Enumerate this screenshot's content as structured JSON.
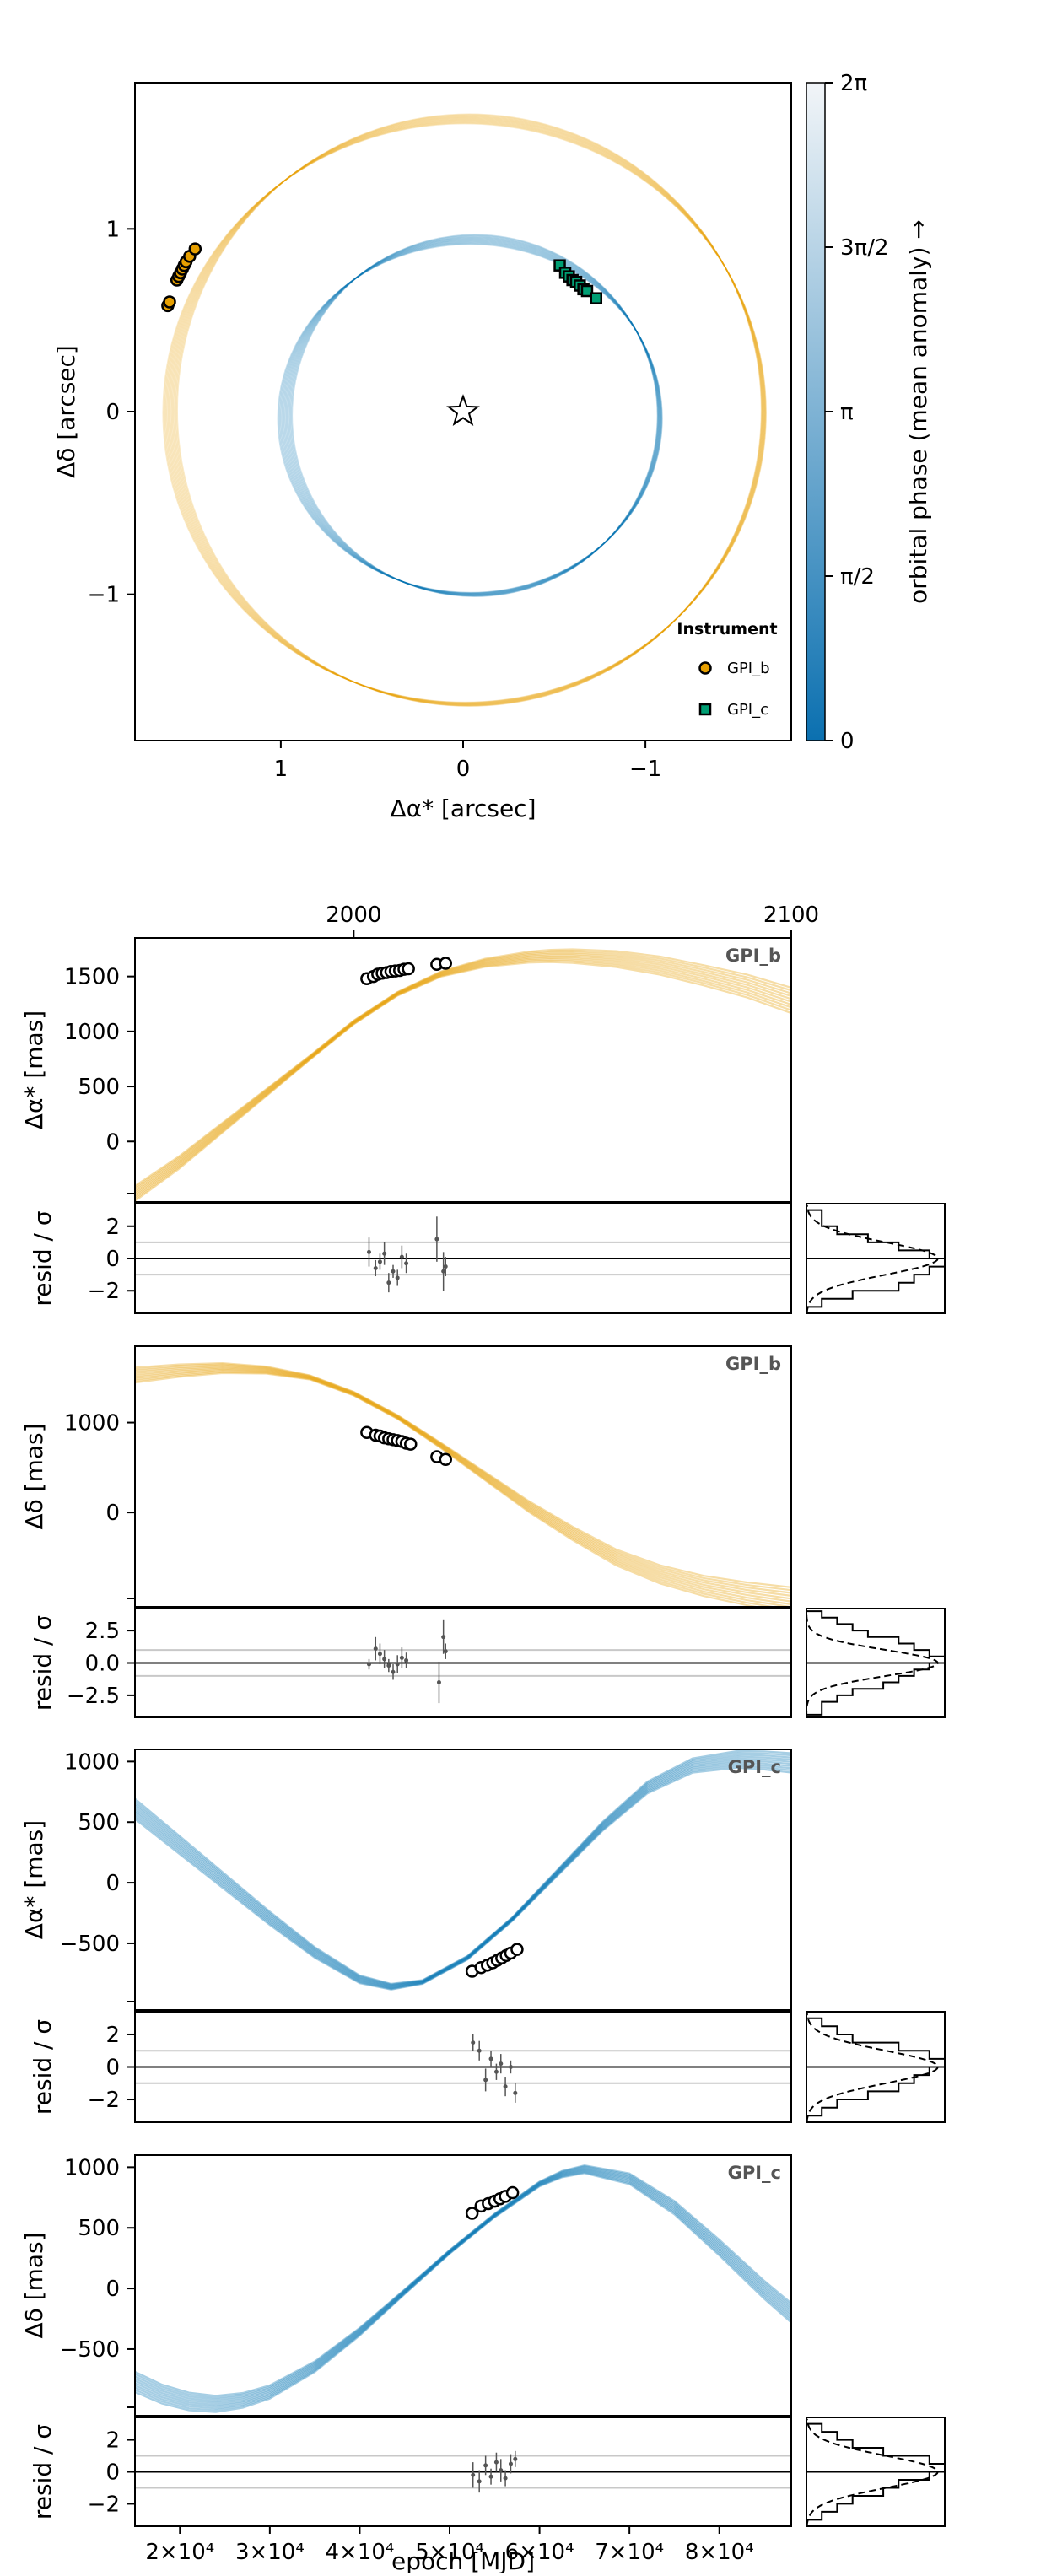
{
  "colors": {
    "planet_b": "#e69f00",
    "planet_c": "#0072b2",
    "marker_c": "#009e73",
    "colormap": [
      "#0b70b0",
      "#f2f5f8"
    ]
  },
  "chart_data": [
    {
      "id": "astrometry",
      "type": "line",
      "xlabel": "Δα* [arcsec]",
      "ylabel": "Δδ [arcsec]",
      "xlim": [
        1.8,
        -1.8
      ],
      "ylim": [
        -1.8,
        1.8
      ],
      "x_reversed": true,
      "xticks": [
        1,
        0,
        -1
      ],
      "xtick_labels": [
        "1",
        "0",
        "−1"
      ],
      "yticks": [
        1,
        0,
        -1
      ],
      "ytick_labels": [
        "1",
        "0",
        "−1"
      ],
      "grid": false,
      "star_marker": [
        0,
        0
      ],
      "orbits": [
        {
          "planet": "b",
          "color": "orange",
          "cx": -0.02,
          "cy": 0.0,
          "rx": 1.63,
          "ry": 1.6
        },
        {
          "planet": "c",
          "color": "blue",
          "cx": -0.05,
          "cy": -0.03,
          "rx": 1.03,
          "ry": 0.97
        }
      ],
      "series": [
        {
          "name": "GPI_b",
          "marker": "circle",
          "points": [
            [
              1.62,
              0.58
            ],
            [
              1.61,
              0.6
            ],
            [
              1.57,
              0.72
            ],
            [
              1.56,
              0.74
            ],
            [
              1.55,
              0.76
            ],
            [
              1.54,
              0.78
            ],
            [
              1.53,
              0.8
            ],
            [
              1.52,
              0.82
            ],
            [
              1.5,
              0.85
            ],
            [
              1.47,
              0.89
            ]
          ]
        },
        {
          "name": "GPI_c",
          "marker": "square",
          "points": [
            [
              -0.53,
              0.8
            ],
            [
              -0.56,
              0.76
            ],
            [
              -0.58,
              0.74
            ],
            [
              -0.6,
              0.72
            ],
            [
              -0.62,
              0.71
            ],
            [
              -0.64,
              0.69
            ],
            [
              -0.66,
              0.67
            ],
            [
              -0.68,
              0.66
            ],
            [
              -0.73,
              0.62
            ]
          ]
        }
      ],
      "legend": {
        "title": "Instrument",
        "entries": [
          "GPI_b",
          "GPI_c"
        ],
        "position": "bottom-right"
      },
      "colorbar": {
        "label": "orbital phase (mean anomaly) →",
        "ticks": [
          0,
          1.5708,
          3.1416,
          4.7124,
          6.2832
        ],
        "tick_labels": [
          "0",
          "π/2",
          "π",
          "3π/2",
          "2π"
        ],
        "range": [
          0,
          6.2832
        ]
      }
    },
    {
      "id": "ra_b",
      "type": "line",
      "ylabel": "Δα* [mas]",
      "panel_label": "GPI_b",
      "color": "orange",
      "xlim": [
        1950,
        2100
      ],
      "ylim": [
        -550,
        1850
      ],
      "top_ticks": [
        2000,
        2100
      ],
      "yticks": [
        1500,
        1000,
        500,
        0
      ],
      "ytick_labels": [
        "1500",
        "1000",
        "500",
        "0"
      ],
      "curve": {
        "x": [
          1950,
          1960,
          1970,
          1980,
          1990,
          2000,
          2010,
          2020,
          2030,
          2040,
          2045,
          2050,
          2060,
          2070,
          2080,
          2090,
          2100
        ],
        "y": [
          -480,
          -200,
          120,
          440,
          760,
          1080,
          1340,
          1520,
          1620,
          1670,
          1680,
          1678,
          1650,
          1590,
          1500,
          1400,
          1270
        ]
      },
      "points": {
        "x": [
          2003,
          2004.5,
          2005.5,
          2006.5,
          2007.5,
          2008.5,
          2009.5,
          2010.5,
          2011.5,
          2012.5,
          2019,
          2021
        ],
        "y": [
          1480,
          1500,
          1520,
          1530,
          1535,
          1545,
          1550,
          1555,
          1565,
          1570,
          1610,
          1620
        ]
      }
    },
    {
      "id": "ra_b_resid",
      "type": "scatter",
      "ylabel": "resid / σ",
      "ylim": [
        -3.4,
        3.4
      ],
      "yticks": [
        2,
        0,
        -2
      ],
      "ytick_labels": [
        "2",
        "0",
        "−2"
      ],
      "gridlines": [
        1,
        -1
      ],
      "points": {
        "x": [
          2003.5,
          2005,
          2006,
          2007,
          2008,
          2009,
          2010,
          2011,
          2012,
          2019,
          2020.5,
          2021
        ],
        "y": [
          0.4,
          -0.6,
          -0.2,
          0.3,
          -1.5,
          -0.8,
          -1.2,
          0.1,
          -0.3,
          1.2,
          -0.8,
          -0.5
        ],
        "err": [
          0.9,
          0.5,
          0.5,
          0.7,
          0.6,
          0.4,
          0.5,
          0.7,
          0.6,
          1.4,
          1.2,
          0.6
        ]
      },
      "histogram": {
        "bins": [
          -3,
          -2.5,
          -2,
          -1.5,
          -1,
          -0.5,
          0,
          0.5,
          1,
          1.5,
          2,
          2.5,
          3
        ],
        "counts": [
          1,
          3,
          6,
          7,
          8,
          9,
          8,
          6,
          4,
          2,
          1,
          1
        ]
      }
    },
    {
      "id": "dec_b",
      "type": "line",
      "ylabel": "Δδ [mas]",
      "panel_label": "GPI_b",
      "color": "orange",
      "xlim": [
        1950,
        2100
      ],
      "ylim": [
        -1050,
        1850
      ],
      "yticks": [
        1000,
        0
      ],
      "ytick_labels": [
        "1000",
        "0"
      ],
      "curve": {
        "x": [
          1950,
          1960,
          1970,
          1980,
          1990,
          2000,
          2010,
          2020,
          2030,
          2040,
          2050,
          2060,
          2070,
          2080,
          2090,
          2100
        ],
        "y": [
          1520,
          1570,
          1600,
          1580,
          1500,
          1320,
          1060,
          740,
          400,
          60,
          -240,
          -510,
          -700,
          -830,
          -920,
          -990
        ]
      },
      "points": {
        "x": [
          2003,
          2005,
          2006,
          2007,
          2008,
          2009,
          2010,
          2011,
          2012,
          2013,
          2019,
          2021
        ],
        "y": [
          890,
          860,
          850,
          830,
          820,
          810,
          800,
          790,
          770,
          760,
          620,
          590
        ]
      }
    },
    {
      "id": "dec_b_resid",
      "type": "scatter",
      "ylabel": "resid / σ",
      "ylim": [
        -4.2,
        4.2
      ],
      "yticks": [
        2.5,
        0.0,
        -2.5
      ],
      "ytick_labels": [
        "2.5",
        "0.0",
        "−2.5"
      ],
      "gridlines": [
        1,
        -1
      ],
      "points": {
        "x": [
          2003.5,
          2005,
          2006,
          2007,
          2008,
          2009,
          2010,
          2011,
          2012,
          2019.5,
          2020.5,
          2021
        ],
        "y": [
          -0.1,
          1.1,
          0.7,
          0.3,
          -0.2,
          -0.7,
          -0.1,
          0.4,
          0.2,
          -1.5,
          2.0,
          0.9
        ],
        "err": [
          0.4,
          0.9,
          0.8,
          0.7,
          0.5,
          0.6,
          0.7,
          0.8,
          0.6,
          1.6,
          1.3,
          0.6
        ]
      },
      "histogram": {
        "bins": [
          -4,
          -3.5,
          -3,
          -2.5,
          -2,
          -1.5,
          -1,
          -0.5,
          0,
          0.5,
          1,
          1.5,
          2,
          2.5,
          3,
          3.5,
          4
        ],
        "counts": [
          1,
          1,
          2,
          3,
          5,
          6,
          7,
          8,
          9,
          8,
          7,
          6,
          4,
          3,
          2,
          1
        ]
      }
    },
    {
      "id": "ra_c",
      "type": "line",
      "ylabel": "Δα* [mas]",
      "panel_label": "GPI_c",
      "color": "blue",
      "xlim": [
        15000,
        88000
      ],
      "ylim": [
        -1050,
        1100
      ],
      "yticks": [
        1000,
        500,
        0,
        -500
      ],
      "ytick_labels": [
        "1000",
        "500",
        "0",
        "−500"
      ],
      "curve": {
        "x": [
          15000,
          20000,
          25000,
          30000,
          35000,
          40000,
          43500,
          47000,
          52000,
          57000,
          62000,
          67000,
          72000,
          77000,
          82000,
          85000,
          88000
        ],
        "y": [
          600,
          300,
          0,
          -300,
          -580,
          -800,
          -860,
          -820,
          -620,
          -300,
          80,
          460,
          780,
          960,
          1010,
          1000,
          980
        ]
      },
      "points": {
        "x": [
          52500,
          53500,
          54200,
          54800,
          55300,
          55800,
          56300,
          56800,
          57500
        ],
        "y": [
          -730,
          -700,
          -680,
          -660,
          -640,
          -620,
          -600,
          -580,
          -550
        ]
      }
    },
    {
      "id": "ra_c_resid",
      "type": "scatter",
      "ylabel": "resid / σ",
      "ylim": [
        -3.4,
        3.4
      ],
      "yticks": [
        2,
        0,
        -2
      ],
      "ytick_labels": [
        "2",
        "0",
        "−2"
      ],
      "gridlines": [
        1,
        -1
      ],
      "points": {
        "x": [
          52600,
          53300,
          54000,
          54600,
          55200,
          55700,
          56200,
          56800,
          57300
        ],
        "y": [
          1.5,
          1.0,
          -0.8,
          0.5,
          -0.3,
          0.2,
          -1.2,
          0.0,
          -1.6
        ],
        "err": [
          0.5,
          0.6,
          0.7,
          0.5,
          0.5,
          0.6,
          0.6,
          0.4,
          0.6
        ]
      },
      "histogram": {
        "bins": [
          -3,
          -2.5,
          -2,
          -1.5,
          -1,
          -0.5,
          0,
          0.5,
          1,
          1.5,
          2,
          2.5,
          3
        ],
        "counts": [
          1,
          2,
          4,
          6,
          7,
          8,
          9,
          8,
          6,
          3,
          2,
          1
        ]
      }
    },
    {
      "id": "dec_c",
      "type": "line",
      "ylabel": "Δδ [mas]",
      "panel_label": "GPI_c",
      "color": "blue",
      "xlim": [
        15000,
        88000
      ],
      "ylim": [
        -1050,
        1100
      ],
      "yticks": [
        1000,
        500,
        0,
        -500
      ],
      "ytick_labels": [
        "1000",
        "500",
        "0",
        "−500"
      ],
      "xticks": [
        20000,
        30000,
        40000,
        50000,
        60000,
        70000,
        80000
      ],
      "xtick_labels": [
        "2×10⁴",
        "3×10⁴",
        "4×10⁴",
        "5×10⁴",
        "6×10⁴",
        "7×10⁴",
        "8×10⁴"
      ],
      "xlabel": "epoch [MJD]",
      "curve": {
        "x": [
          15000,
          18000,
          21000,
          24000,
          27000,
          30000,
          35000,
          40000,
          45000,
          50000,
          55000,
          60000,
          62500,
          65000,
          70000,
          75000,
          80000,
          85000,
          88000
        ],
        "y": [
          -780,
          -880,
          -940,
          -960,
          -930,
          -860,
          -650,
          -360,
          -30,
          300,
          600,
          860,
          940,
          980,
          900,
          660,
          330,
          -20,
          -210
        ]
      },
      "points": {
        "x": [
          52500,
          53500,
          54300,
          55000,
          55600,
          56200,
          57000
        ],
        "y": [
          620,
          680,
          700,
          720,
          740,
          760,
          790
        ]
      }
    },
    {
      "id": "dec_c_resid",
      "type": "scatter",
      "ylabel": "resid / σ",
      "ylim": [
        -3.4,
        3.4
      ],
      "yticks": [
        2,
        0,
        -2
      ],
      "ytick_labels": [
        "2",
        "0",
        "−2"
      ],
      "gridlines": [
        1,
        -1
      ],
      "points": {
        "x": [
          52600,
          53300,
          54000,
          54600,
          55200,
          55700,
          56200,
          56800,
          57300
        ],
        "y": [
          -0.2,
          -0.6,
          0.4,
          -0.3,
          0.6,
          0.1,
          -0.4,
          0.5,
          0.8
        ],
        "err": [
          0.8,
          0.7,
          0.6,
          0.5,
          0.6,
          0.7,
          0.5,
          0.6,
          0.5
        ]
      },
      "histogram": {
        "bins": [
          -3,
          -2.5,
          -2,
          -1.5,
          -1,
          -0.5,
          0,
          0.5,
          1,
          1.5,
          2,
          2.5,
          3
        ],
        "counts": [
          1,
          2,
          3,
          5,
          6,
          8,
          9,
          8,
          5,
          3,
          2,
          1
        ]
      }
    }
  ]
}
